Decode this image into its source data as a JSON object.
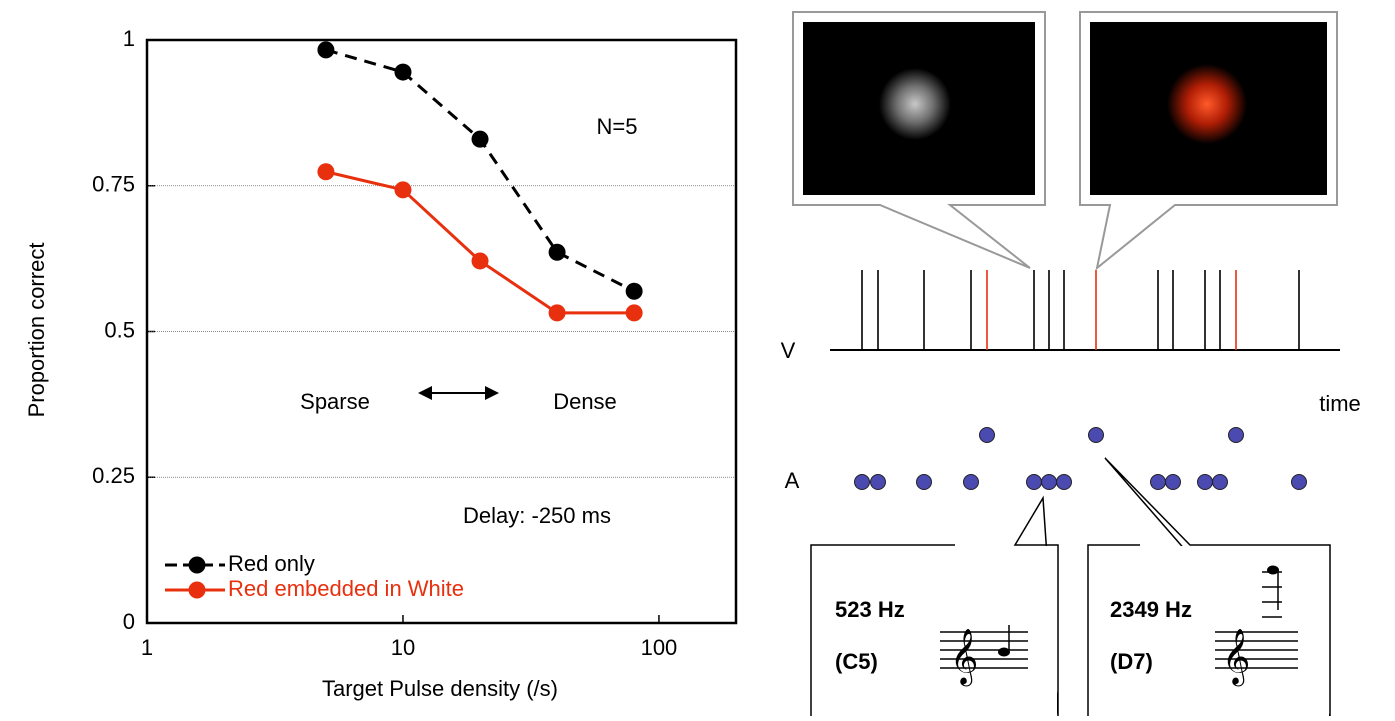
{
  "chart_data": {
    "type": "line",
    "x_label": "Target Pulse density (/s)",
    "y_label": "Proportion correct",
    "x": [
      5,
      10,
      20,
      40,
      80
    ],
    "series": [
      {
        "name": "Red only",
        "color": "#000000",
        "line_style": "dashed",
        "values": [
          0.983,
          0.945,
          0.83,
          0.636,
          0.569
        ]
      },
      {
        "name": "Red embedded in White",
        "color": "#e8300e",
        "line_style": "solid",
        "values": [
          0.774,
          0.743,
          0.621,
          0.532,
          0.532
        ]
      }
    ],
    "x_scale": "log",
    "xlim": [
      1,
      200
    ],
    "xticks": [
      1,
      10,
      100
    ],
    "ylim": [
      0,
      1
    ],
    "yticks": [
      0,
      0.25,
      0.5,
      0.75,
      1
    ],
    "grid": true,
    "legend": "lower left",
    "annotations": [
      "N=5",
      "Sparse",
      "Dense",
      "Delay: -250 ms"
    ]
  },
  "diagram": {
    "v_label": "V",
    "a_label": "A",
    "time_label": "time",
    "tones": [
      {
        "freq": "523 Hz",
        "note": "(C5)"
      },
      {
        "freq": "2349 Hz",
        "note": "(D7)"
      }
    ]
  }
}
